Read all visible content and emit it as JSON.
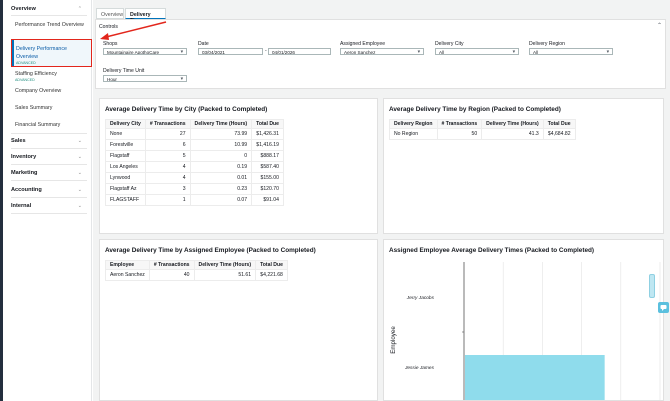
{
  "sidebar": {
    "overview": "Overview",
    "overview_items": [
      {
        "label": "Performance Trend Overview"
      },
      {
        "label": "Delivery Performance Overview",
        "tag": "ADVANCED"
      },
      {
        "label": "Staffing Efficiency",
        "tag": "ADVANCED"
      },
      {
        "label": "Company Overview"
      },
      {
        "label": "Sales Summary"
      },
      {
        "label": "Financial Summary"
      }
    ],
    "sections": [
      "Sales",
      "Inventory",
      "Marketing",
      "Accounting",
      "Internal"
    ]
  },
  "tabs": [
    "Overview",
    "Delivery Times"
  ],
  "controls": {
    "title": "Controls",
    "shops_label": "Shops",
    "shops_value": "Mountainaire ApothoCare",
    "date_label": "Date",
    "date_from": "03/04/2021",
    "date_to": "04/01/2026",
    "date_sep": "-",
    "employee_label": "Assigned Employee",
    "employee_value": "Aeron Sanchez",
    "city_label": "Delivery City",
    "city_value": "All",
    "region_label": "Delivery Region",
    "region_value": "All",
    "unit_label": "Delivery Time Unit",
    "unit_value": "Hour"
  },
  "city_table": {
    "title": "Average Delivery Time by City (Packed to Completed)",
    "headers": [
      "Delivery City",
      "# Transactions",
      "Delivery Time (Hours)",
      "Total Due"
    ],
    "rows": [
      [
        "None",
        "27",
        "73.99",
        "$1,426.31"
      ],
      [
        "Forestville",
        "6",
        "10.99",
        "$1,416.19"
      ],
      [
        "Flagstaff",
        "5",
        "0",
        "$888.17"
      ],
      [
        "Los Angeles",
        "4",
        "0.19",
        "$587.40"
      ],
      [
        "Lynwood",
        "4",
        "0.01",
        "$155.00"
      ],
      [
        "Flagstaff Az",
        "3",
        "0.23",
        "$120.70"
      ],
      [
        "FLAGSTAFF",
        "1",
        "0.07",
        "$91.04"
      ]
    ]
  },
  "region_table": {
    "title": "Average Delivery Time by Region (Packed to Completed)",
    "headers": [
      "Delivery Region",
      "# Transactions",
      "Delivery Time (Hours)",
      "Total Due"
    ],
    "rows": [
      [
        "No Region",
        "50",
        "41.3",
        "$4,684.82"
      ]
    ]
  },
  "employee_table": {
    "title": "Average Delivery Time by Assigned Employee (Packed to Completed)",
    "headers": [
      "Employee",
      "# Transactions",
      "Delivery Time (Hours)",
      "Total Due"
    ],
    "rows": [
      [
        "Aeron Sanchez",
        "40",
        "51.61",
        "$4,221.68"
      ]
    ]
  },
  "chart": {
    "title": "Assigned Employee Average Delivery Times (Packed to Completed)",
    "ylabel": "Employee",
    "accent": "#8fdcec"
  },
  "chart_data": {
    "type": "bar",
    "orientation": "horizontal",
    "categories": [
      "Jerry Jacobs",
      "Jessie James"
    ],
    "values": [
      0,
      57
    ],
    "ylabel": "Employee",
    "xlim": [
      0,
      80
    ],
    "grid": true
  },
  "colors": {
    "accent": "#0073bb",
    "highlight": "#e2261c",
    "bar": "#8fdcec"
  }
}
